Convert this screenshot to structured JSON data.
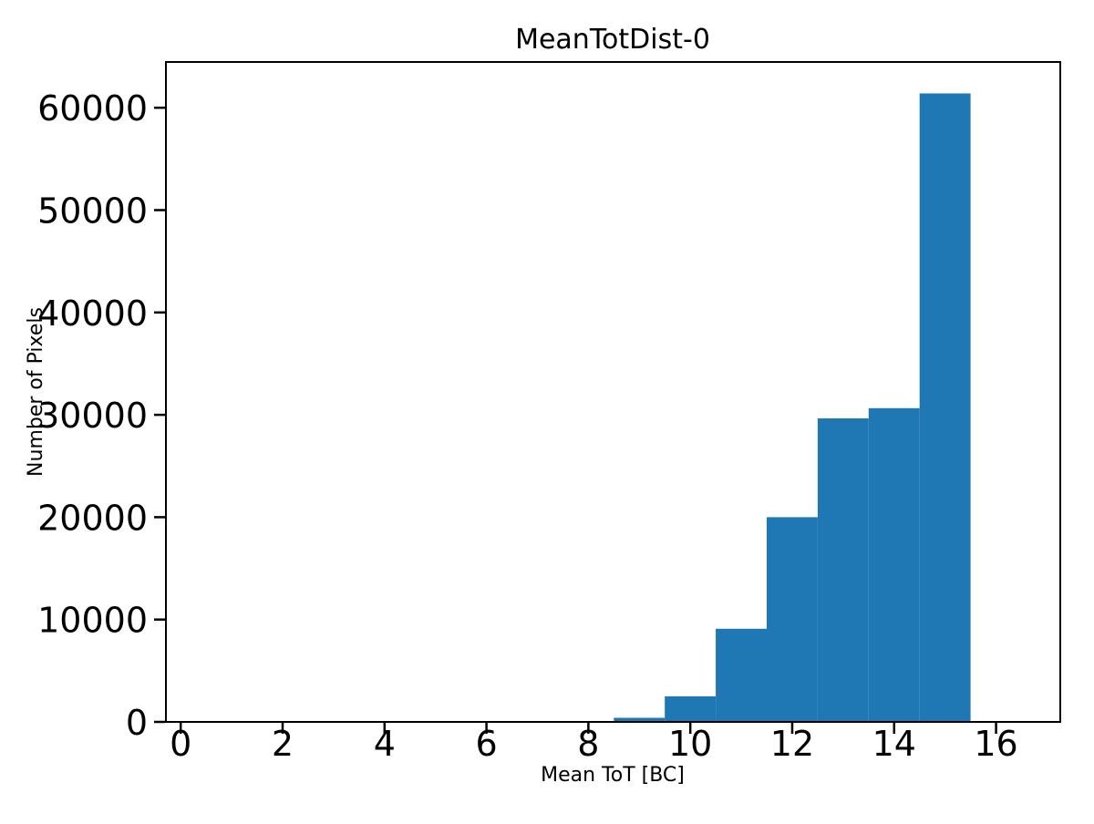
{
  "chart_data": {
    "type": "bar",
    "title": "MeanTotDist-0",
    "xlabel": "Mean ToT [BC]",
    "ylabel": "Number of Pixels",
    "bin_edges": [
      8.5,
      9.5,
      10.5,
      11.5,
      12.5,
      13.5,
      14.5,
      15.5
    ],
    "values": [
      400,
      2500,
      9100,
      20000,
      29650,
      30650,
      61400
    ],
    "xticks": [
      0,
      2,
      4,
      6,
      8,
      10,
      12,
      14,
      16
    ],
    "yticks": [
      0,
      10000,
      20000,
      30000,
      40000,
      50000,
      60000
    ],
    "xlim": [
      -0.29,
      17.26
    ],
    "ylim": [
      0,
      64470
    ],
    "bar_color": "#1f77b4",
    "axis_color": "#000000",
    "background_color": "#ffffff",
    "grid": false,
    "legend_position": "none"
  }
}
